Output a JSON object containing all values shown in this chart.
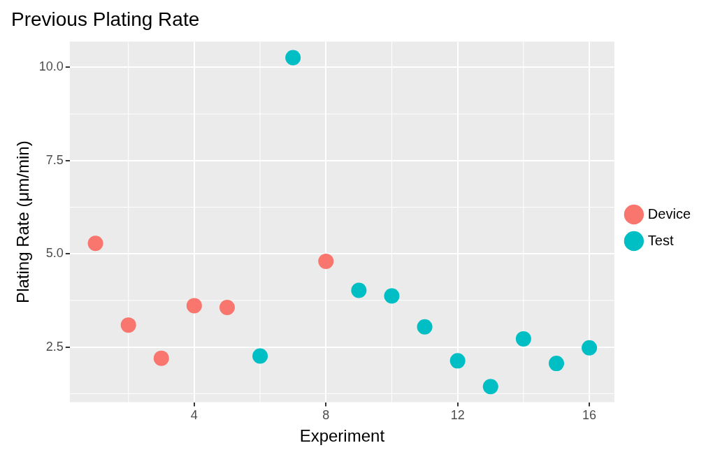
{
  "chart_data": {
    "type": "scatter",
    "title": "Previous Plating Rate",
    "xlabel": "Experiment",
    "ylabel": "Plating Rate (μm/min)",
    "series": [
      {
        "name": "Device",
        "color": "#f8766d",
        "x": [
          1,
          2,
          3,
          4,
          5,
          8
        ],
        "values": [
          5.28,
          3.09,
          2.2,
          3.61,
          3.56,
          4.8
        ]
      },
      {
        "name": "Test",
        "color": "#00bfc4",
        "x": [
          6,
          7,
          9,
          10,
          11,
          12,
          13,
          14,
          15,
          16
        ],
        "values": [
          2.26,
          10.26,
          4.02,
          3.87,
          3.04,
          2.13,
          1.44,
          2.72,
          2.06,
          2.48
        ]
      }
    ],
    "xlim": [
      0.22,
      16.76
    ],
    "xticks": [
      4,
      8,
      12,
      16
    ],
    "ylim": [
      1.02,
      10.69
    ],
    "yticks": [
      {
        "value": 2.5,
        "label": "2.5"
      },
      {
        "value": 5,
        "label": "5.0"
      },
      {
        "value": 7.5,
        "label": "7.5"
      },
      {
        "value": 10,
        "label": "10.0"
      }
    ],
    "grid": true,
    "legend": "right",
    "marker": "circle"
  }
}
